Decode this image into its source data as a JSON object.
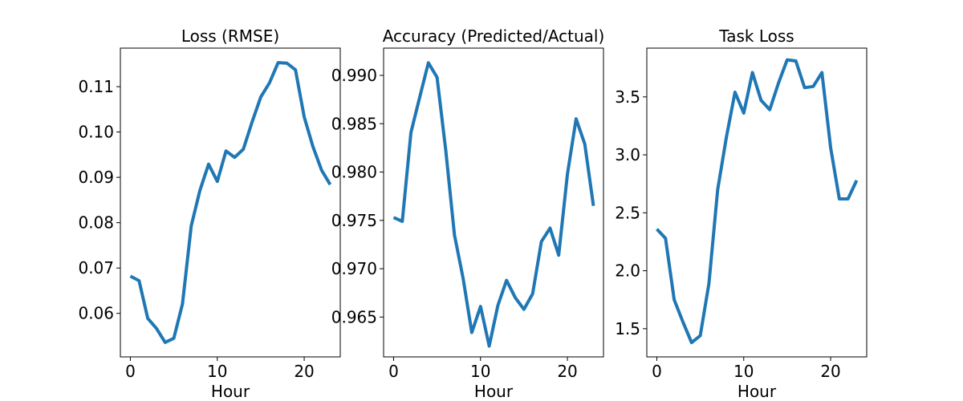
{
  "colors": {
    "line": "#1f77b4"
  },
  "chart_data": [
    {
      "type": "line",
      "title": "Loss (RMSE)",
      "xlabel": "Hour",
      "ylabel": "",
      "grid": false,
      "xlim": [
        -1.15,
        24.15
      ],
      "ylim": [
        0.0504,
        0.1185
      ],
      "xticks": [
        0,
        10,
        20
      ],
      "xtick_labels": [
        "0",
        "10",
        "20"
      ],
      "yticks": [
        0.06,
        0.07,
        0.08,
        0.09,
        0.1,
        0.11
      ],
      "ytick_labels": [
        "0.06",
        "0.07",
        "0.08",
        "0.09",
        "0.10",
        "0.11"
      ],
      "x": [
        0,
        1,
        2,
        3,
        4,
        5,
        6,
        7,
        8,
        9,
        10,
        11,
        12,
        13,
        14,
        15,
        16,
        17,
        18,
        19,
        20,
        21,
        22,
        23
      ],
      "series": [
        {
          "values": [
            0.0682,
            0.0672,
            0.0589,
            0.0567,
            0.0536,
            0.0545,
            0.0621,
            0.0793,
            0.0871,
            0.0929,
            0.0891,
            0.0958,
            0.0944,
            0.0962,
            0.1022,
            0.1077,
            0.1108,
            0.1153,
            0.1152,
            0.1137,
            0.1033,
            0.0968,
            0.0916,
            0.0884
          ]
        }
      ]
    },
    {
      "type": "line",
      "title": "Accuracy (Predicted/Actual)",
      "xlabel": "Hour",
      "ylabel": "",
      "grid": false,
      "xlim": [
        -1.15,
        24.15
      ],
      "ylim": [
        0.96088,
        0.99282
      ],
      "xticks": [
        0,
        10,
        20
      ],
      "xtick_labels": [
        "0",
        "10",
        "20"
      ],
      "yticks": [
        0.965,
        0.97,
        0.975,
        0.98,
        0.985,
        0.99
      ],
      "ytick_labels": [
        "0.965",
        "0.970",
        "0.975",
        "0.980",
        "0.985",
        "0.990"
      ],
      "x": [
        0,
        1,
        2,
        3,
        4,
        5,
        6,
        7,
        8,
        9,
        10,
        11,
        12,
        13,
        14,
        15,
        16,
        17,
        18,
        19,
        20,
        21,
        22,
        23
      ],
      "series": [
        {
          "values": [
            0.9753,
            0.9749,
            0.9841,
            0.9877,
            0.9913,
            0.9898,
            0.9823,
            0.9735,
            0.969,
            0.9634,
            0.9661,
            0.962,
            0.9662,
            0.9688,
            0.967,
            0.9658,
            0.9674,
            0.9728,
            0.9742,
            0.9714,
            0.9798,
            0.9855,
            0.9829,
            0.9765
          ]
        }
      ]
    },
    {
      "type": "line",
      "title": "Task Loss",
      "xlabel": "Hour",
      "ylabel": "",
      "grid": false,
      "xlim": [
        -1.15,
        24.15
      ],
      "ylim": [
        1.2568,
        3.9208
      ],
      "xticks": [
        0,
        10,
        20
      ],
      "xtick_labels": [
        "0",
        "10",
        "20"
      ],
      "yticks": [
        1.5,
        2.0,
        2.5,
        3.0,
        3.5
      ],
      "ytick_labels": [
        "1.5",
        "2.0",
        "2.5",
        "3.0",
        "3.5"
      ],
      "x": [
        0,
        1,
        2,
        3,
        4,
        5,
        6,
        7,
        8,
        9,
        10,
        11,
        12,
        13,
        14,
        15,
        16,
        17,
        18,
        19,
        20,
        21,
        22,
        23
      ],
      "series": [
        {
          "values": [
            2.36,
            2.28,
            1.75,
            1.56,
            1.38,
            1.44,
            1.89,
            2.7,
            3.15,
            3.54,
            3.36,
            3.71,
            3.47,
            3.39,
            3.62,
            3.82,
            3.81,
            3.58,
            3.59,
            3.71,
            3.06,
            2.62,
            2.62,
            2.78
          ]
        }
      ]
    }
  ]
}
